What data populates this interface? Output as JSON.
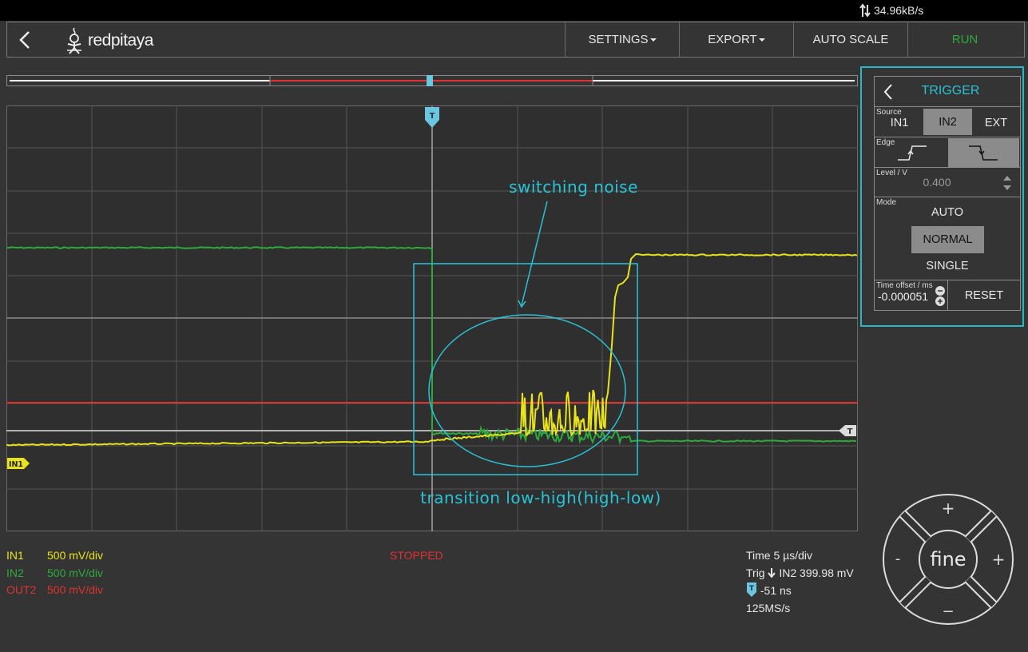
{
  "status_bar": {
    "transfer_rate": "34.96kB/s",
    "rate_icon": "up-down-arrows-icon"
  },
  "navbar": {
    "back_icon": "chevron-left-icon",
    "logo_text": "redpitaya",
    "logo_icon": "redpitaya-mascot-icon",
    "buttons": {
      "settings": "SETTINGS",
      "export": "EXPORT",
      "autoscale": "AUTO SCALE",
      "run": "RUN"
    }
  },
  "colors": {
    "in1": "#e8e31c",
    "in2": "#2eaa3c",
    "out2": "#e03232",
    "accent": "#29c3d6",
    "run": "#2eaa3c"
  },
  "plot": {
    "trigger_marker": "T",
    "ch_marker": "IN1",
    "annotations": {
      "noise": "switching noise",
      "transition": "transition low-high(high-low)"
    }
  },
  "channels": [
    {
      "name": "IN1",
      "scale": "500 mV/div"
    },
    {
      "name": "IN2",
      "scale": "500 mV/div"
    },
    {
      "name": "OUT2",
      "scale": "500 mV/div"
    }
  ],
  "acq_state": "STOPPED",
  "timing": {
    "time": "Time 5 µs/div",
    "trig_prefix": "Trig",
    "trig": "IN2 399.98 mV",
    "offset_marker": "T",
    "offset": "-51 ns",
    "rate": "125MS/s"
  },
  "trigger_panel": {
    "title": "TRIGGER",
    "source_label": "Source",
    "sources": [
      "IN1",
      "IN2",
      "EXT"
    ],
    "selected_source": "IN2",
    "edge_label": "Edge",
    "edge_icons": [
      "rising-edge-icon",
      "falling-edge-icon"
    ],
    "selected_edge": "falling",
    "level_label": "Level / V",
    "level_value": "0.400",
    "mode_label": "Mode",
    "modes": [
      "AUTO",
      "NORMAL",
      "SINGLE"
    ],
    "selected_mode": "NORMAL",
    "offset_label": "Time offset / ms",
    "offset_value": "-0.000051",
    "reset": "RESET"
  },
  "jog": {
    "center": "fine",
    "top": "+",
    "bottom": "−",
    "left": "-",
    "right": "+"
  }
}
